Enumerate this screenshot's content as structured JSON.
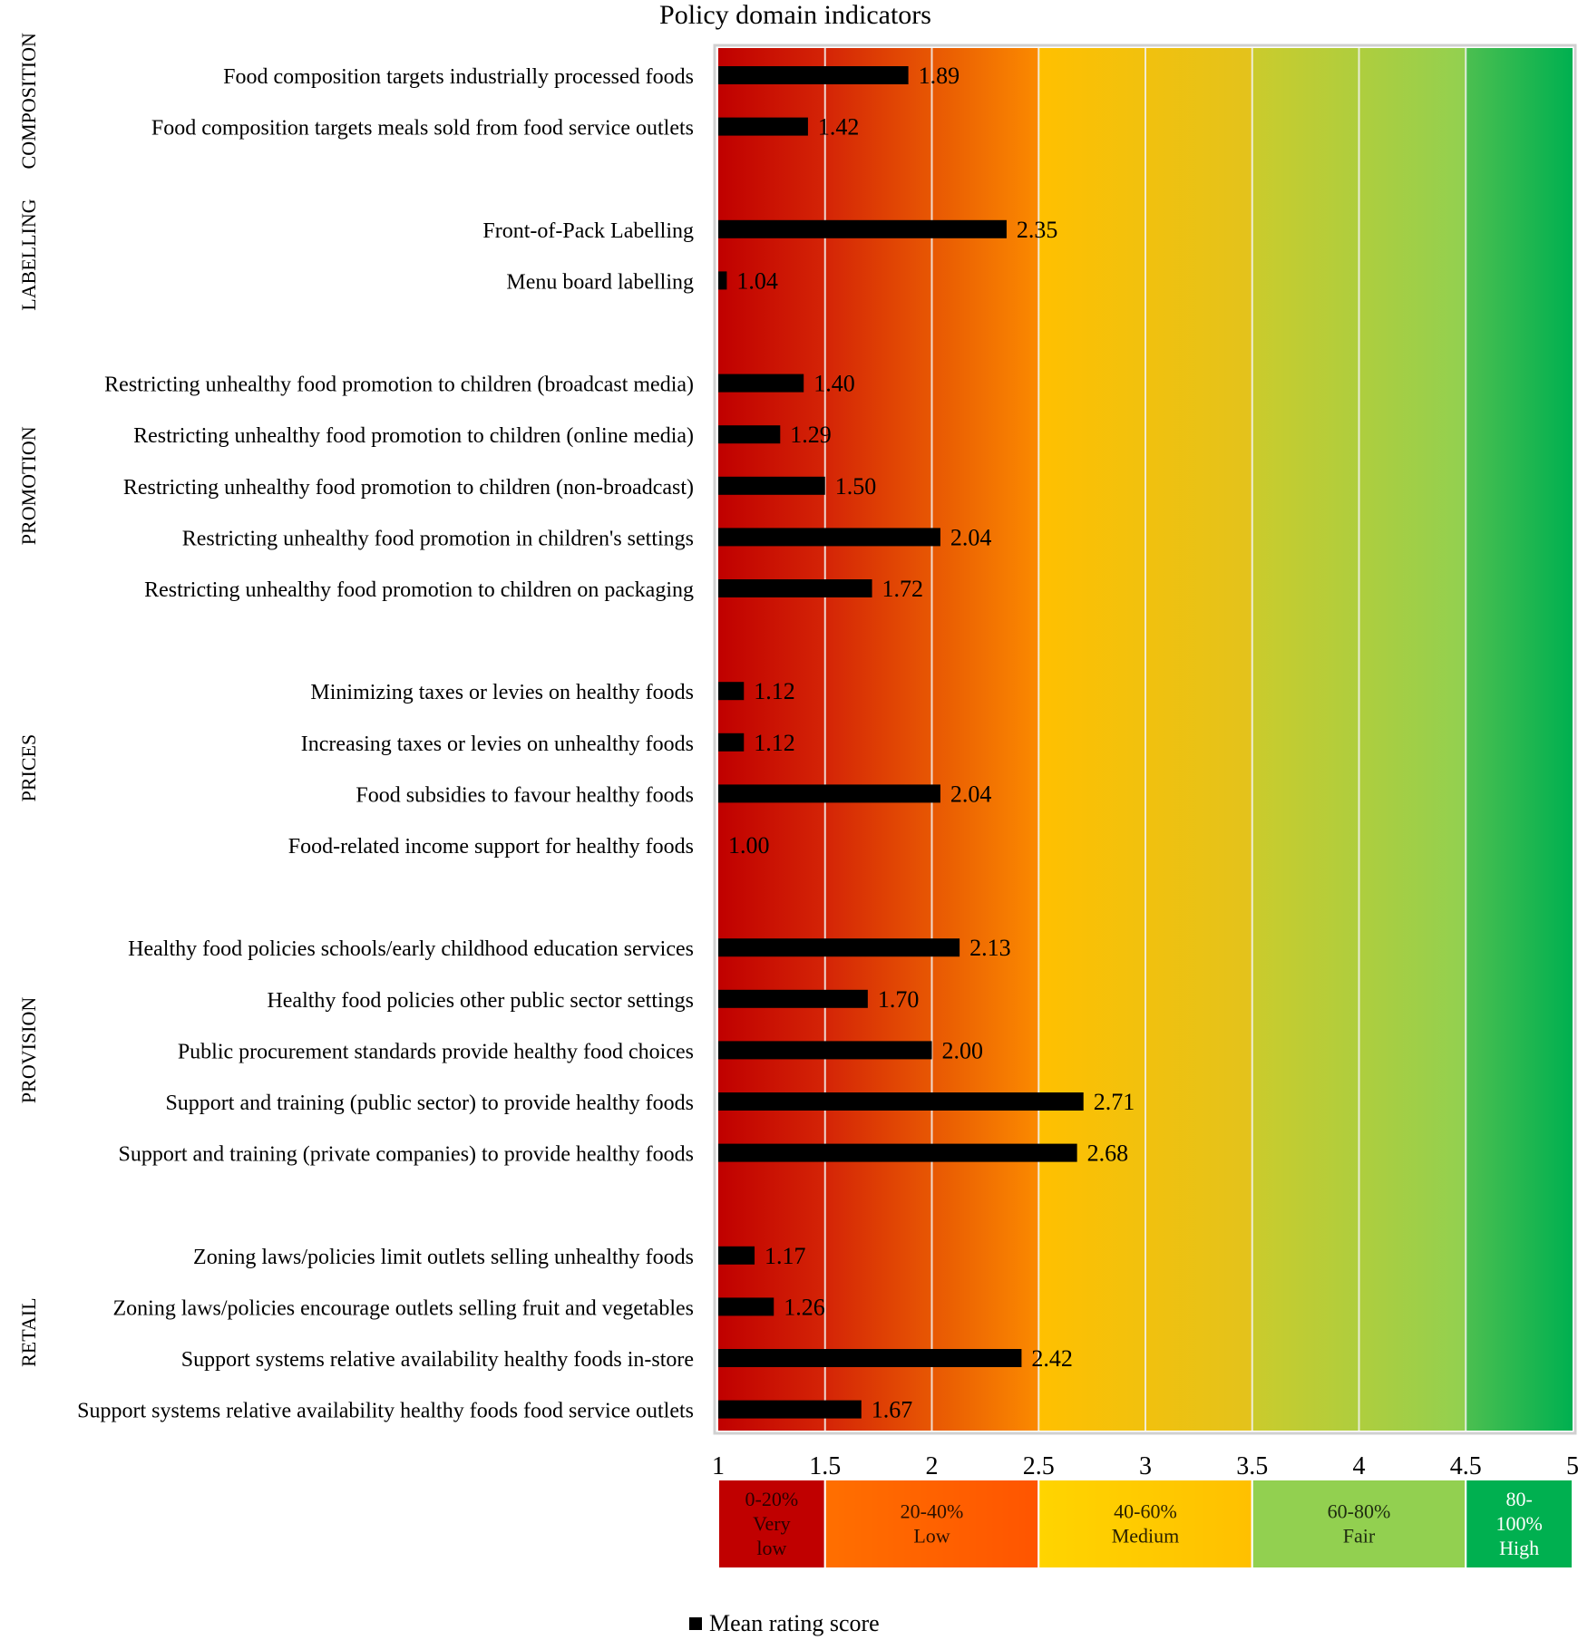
{
  "chart_data": {
    "type": "bar",
    "orientation": "horizontal",
    "title": "Policy domain indicators",
    "xlabel": "",
    "ylabel": "",
    "xlim": [
      1,
      5
    ],
    "ticks": [
      1,
      1.5,
      2,
      2.5,
      3,
      3.5,
      4,
      4.5,
      5
    ],
    "tick_labels": [
      "1",
      "1.5",
      "2",
      "2.5",
      "3",
      "3.5",
      "4",
      "4.5",
      "5"
    ],
    "grid": true,
    "legend": {
      "position": "bottom",
      "entries": [
        "Mean rating score"
      ]
    },
    "series": [
      {
        "name": "Mean rating score",
        "color": "#000000"
      }
    ],
    "groups": [
      {
        "name": "COMPOSITION",
        "items": [
          {
            "label": "Food composition targets industrially processed foods",
            "value": 1.89,
            "value_label": "1.89"
          },
          {
            "label": "Food composition targets meals sold from food service outlets",
            "value": 1.42,
            "value_label": "1.42"
          }
        ]
      },
      {
        "name": "LABELLING",
        "items": [
          {
            "label": "Front-of-Pack Labelling",
            "value": 2.35,
            "value_label": "2.35"
          },
          {
            "label": "Menu board labelling",
            "value": 1.04,
            "value_label": "1.04"
          }
        ]
      },
      {
        "name": "PROMOTION",
        "items": [
          {
            "label": "Restricting unhealthy food promotion to children (broadcast media)",
            "value": 1.4,
            "value_label": "1.40"
          },
          {
            "label": "Restricting unhealthy food promotion to children (online media)",
            "value": 1.29,
            "value_label": "1.29"
          },
          {
            "label": "Restricting unhealthy food promotion to children (non-broadcast)",
            "value": 1.5,
            "value_label": "1.50"
          },
          {
            "label": "Restricting unhealthy food promotion in children's settings",
            "value": 2.04,
            "value_label": "2.04"
          },
          {
            "label": "Restricting unhealthy food promotion to children on packaging",
            "value": 1.72,
            "value_label": "1.72"
          }
        ]
      },
      {
        "name": "PRICES",
        "items": [
          {
            "label": "Minimizing taxes or levies on healthy foods",
            "value": 1.12,
            "value_label": "1.12"
          },
          {
            "label": "Increasing taxes or levies on unhealthy foods",
            "value": 1.12,
            "value_label": "1.12"
          },
          {
            "label": "Food subsidies to favour healthy foods",
            "value": 2.04,
            "value_label": "2.04"
          },
          {
            "label": "Food-related income support for healthy foods",
            "value": 1.0,
            "value_label": "1.00"
          }
        ]
      },
      {
        "name": "PROVISION",
        "items": [
          {
            "label": "Healthy food policies schools/early childhood education services",
            "value": 2.13,
            "value_label": "2.13"
          },
          {
            "label": "Healthy food policies other public sector settings",
            "value": 1.7,
            "value_label": "1.70"
          },
          {
            "label": "Public procurement standards provide healthy food choices",
            "value": 2.0,
            "value_label": "2.00"
          },
          {
            "label": "Support and training (public sector) to provide healthy foods",
            "value": 2.71,
            "value_label": "2.71"
          },
          {
            "label": "Support and training (private companies) to provide healthy foods",
            "value": 2.68,
            "value_label": "2.68"
          }
        ]
      },
      {
        "name": "RETAIL",
        "items": [
          {
            "label": "Zoning laws/policies limit outlets selling unhealthy foods",
            "value": 1.17,
            "value_label": "1.17"
          },
          {
            "label": "Zoning laws/policies encourage outlets selling fruit and vegetables",
            "value": 1.26,
            "value_label": "1.26"
          },
          {
            "label": "Support systems relative availability healthy foods in-store",
            "value": 2.42,
            "value_label": "2.42"
          },
          {
            "label": "Support systems relative availability healthy foods food service outlets",
            "value": 1.67,
            "value_label": "1.67"
          }
        ]
      }
    ],
    "background_bands": [
      {
        "from": 1.0,
        "to": 1.5,
        "color_start": "#c00000",
        "color_end": "#d42406"
      },
      {
        "from": 1.5,
        "to": 2.5,
        "color_start": "#d42406",
        "color_end": "#fb8a00"
      },
      {
        "from": 2.5,
        "to": 3.5,
        "color_start": "#ffc000",
        "color_end": "#e3c21c"
      },
      {
        "from": 3.5,
        "to": 4.5,
        "color_start": "#cbcb2c",
        "color_end": "#92d050"
      },
      {
        "from": 4.5,
        "to": 5.0,
        "color_start": "#4cbf50",
        "color_end": "#00b050"
      }
    ],
    "rating_legend": [
      {
        "from": 1.0,
        "to": 1.5,
        "lines": [
          "0-20%",
          "Very",
          "low"
        ],
        "color_start": "#c00000",
        "color_end": "#c00000",
        "text_color": "#2b0000"
      },
      {
        "from": 1.5,
        "to": 2.5,
        "lines": [
          "20-40%",
          "Low"
        ],
        "color_start": "#ff6f00",
        "color_end": "#ff5500",
        "text_color": "#2b1000"
      },
      {
        "from": 2.5,
        "to": 3.5,
        "lines": [
          "40-60%",
          "Medium"
        ],
        "color_start": "#ffd400",
        "color_end": "#ffc000",
        "text_color": "#2b2000"
      },
      {
        "from": 3.5,
        "to": 4.5,
        "lines": [
          "60-80%",
          "Fair"
        ],
        "color_start": "#92d050",
        "color_end": "#92d050",
        "text_color": "#1e2b10"
      },
      {
        "from": 4.5,
        "to": 5.0,
        "lines": [
          "80-",
          "100%",
          "High"
        ],
        "color_start": "#00b050",
        "color_end": "#00b050",
        "text_color": "#ffffff"
      }
    ]
  }
}
